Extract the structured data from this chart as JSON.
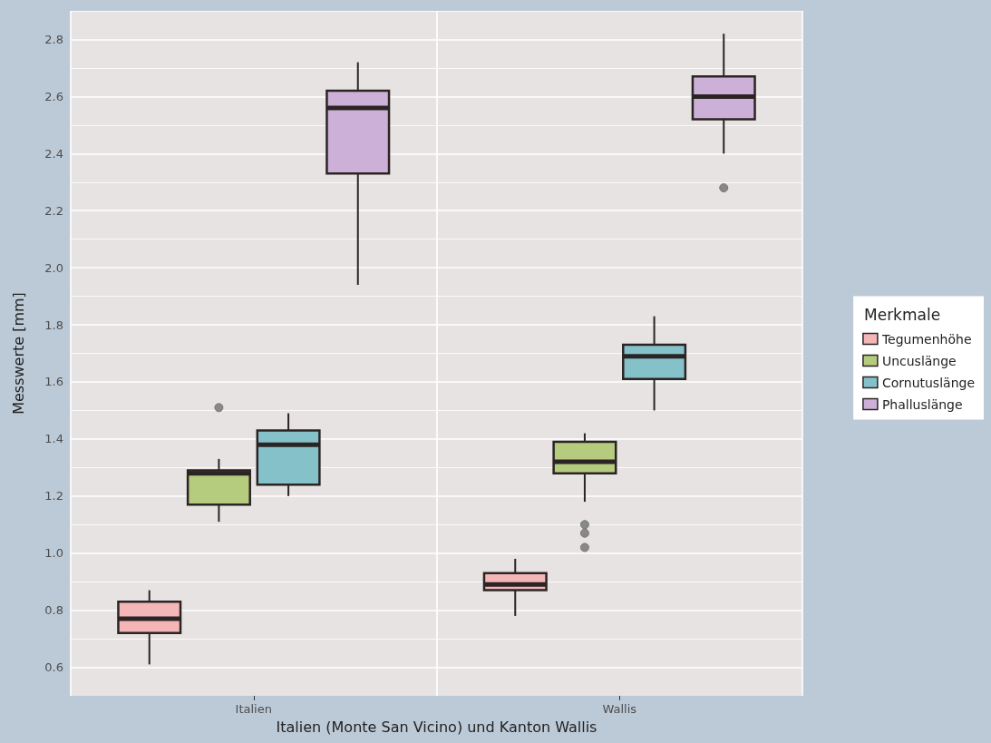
{
  "chart_data": {
    "type": "box",
    "xlabel": "Italien (Monte San Vicino) und Kanton Wallis",
    "ylabel": "Messwerte [mm]",
    "legend_title": "Merkmale",
    "categories": [
      "Italien",
      "Wallis"
    ],
    "ylim": [
      0.5,
      2.9
    ],
    "yticks": [
      0.6,
      0.8,
      {
        "value": 1,
        "label": "1.0"
      },
      1.2,
      1.4,
      1.6,
      1.8,
      {
        "value": 2,
        "label": "2.0"
      },
      2.2,
      2.4,
      2.6,
      2.8
    ],
    "grid": true,
    "legend": "right",
    "series": [
      {
        "name": "Tegumenhöhe",
        "color": "#f4b6b6",
        "boxes": [
          {
            "low": 0.61,
            "q1": 0.72,
            "median": 0.77,
            "q3": 0.83,
            "high": 0.87
          },
          {
            "low": 0.78,
            "q1": 0.87,
            "median": 0.89,
            "q3": 0.93,
            "high": 0.98
          }
        ]
      },
      {
        "name": "Uncuslänge",
        "color": "#b5cc7e",
        "boxes": [
          {
            "low": 1.11,
            "q1": 1.17,
            "median": 1.28,
            "q3": 1.29,
            "high": 1.33,
            "outliers": [
              1.51
            ]
          },
          {
            "low": 1.18,
            "q1": 1.28,
            "median": 1.32,
            "q3": 1.39,
            "high": 1.42,
            "outliers": [
              1.1,
              1.07,
              1.02
            ]
          }
        ]
      },
      {
        "name": "Cornutuslänge",
        "color": "#85c1c8",
        "boxes": [
          {
            "low": 1.2,
            "q1": 1.24,
            "median": 1.38,
            "q3": 1.43,
            "high": 1.49
          },
          {
            "low": 1.5,
            "q1": 1.61,
            "median": 1.69,
            "q3": 1.73,
            "high": 1.83
          }
        ]
      },
      {
        "name": "Phalluslänge",
        "color": "#cdb0d8",
        "boxes": [
          {
            "low": 1.94,
            "q1": 2.33,
            "median": 2.56,
            "q3": 2.62,
            "high": 2.72
          },
          {
            "low": 2.4,
            "q1": 2.52,
            "median": 2.6,
            "q3": 2.67,
            "high": 2.82,
            "outliers": [
              2.28
            ]
          }
        ]
      }
    ]
  }
}
